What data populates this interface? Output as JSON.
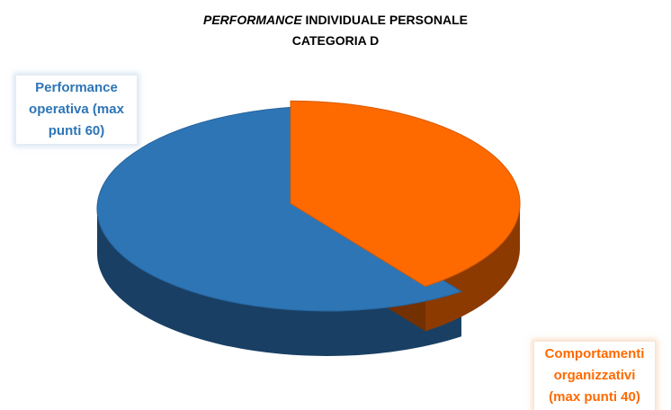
{
  "chart_data": {
    "type": "pie3d",
    "title": "PERFORMANCE INDIVIDUALE PERSONALE",
    "subtitle": "CATEGORIA D",
    "categories": [
      "Performance operativa (max punti 60)",
      "Comportamenti organizzativi (max punti 40)"
    ],
    "values": [
      60,
      40
    ],
    "colors": [
      "#2e75b6",
      "#ff6a00"
    ],
    "exploded": [
      false,
      true
    ]
  }
}
